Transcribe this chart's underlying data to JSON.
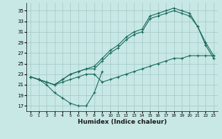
{
  "xlabel": "Humidex (Indice chaleur)",
  "bg_color": "#c8e8e5",
  "grid_color": "#a0c8c5",
  "line_color": "#1a6b5a",
  "xlim": [
    -0.5,
    23.5
  ],
  "ylim": [
    16.0,
    36.5
  ],
  "xticks": [
    0,
    1,
    2,
    3,
    4,
    5,
    6,
    7,
    8,
    9,
    10,
    11,
    12,
    13,
    14,
    15,
    16,
    17,
    18,
    19,
    20,
    21,
    22,
    23
  ],
  "yticks": [
    17,
    19,
    21,
    23,
    25,
    27,
    29,
    31,
    33,
    35
  ],
  "line1_x": [
    0,
    1,
    2,
    3,
    4,
    5,
    6,
    7,
    8,
    9
  ],
  "line1_y": [
    22.5,
    22.0,
    21.0,
    19.5,
    18.5,
    17.5,
    17.0,
    17.0,
    19.5,
    23.5
  ],
  "line2_x": [
    0,
    1,
    2,
    3,
    4,
    5,
    6,
    7,
    8,
    9,
    10,
    11,
    12,
    13,
    14,
    15,
    16,
    17,
    18,
    19,
    20,
    21,
    22,
    23
  ],
  "line2_y": [
    22.5,
    22.0,
    21.5,
    21.0,
    21.5,
    22.0,
    22.5,
    23.0,
    23.0,
    21.5,
    22.0,
    22.5,
    23.0,
    23.5,
    24.0,
    24.5,
    25.0,
    25.5,
    26.0,
    26.0,
    26.5,
    26.5,
    26.5,
    26.5
  ],
  "line3_x": [
    0,
    1,
    2,
    3,
    4,
    5,
    6,
    7,
    8,
    9,
    10,
    11,
    12,
    13,
    14,
    15,
    16,
    17,
    18,
    19,
    20,
    21,
    22,
    23
  ],
  "line3_y": [
    22.5,
    22.0,
    21.5,
    21.0,
    22.0,
    23.0,
    23.5,
    24.0,
    24.5,
    26.0,
    27.5,
    28.5,
    30.0,
    31.0,
    31.5,
    34.0,
    34.5,
    35.0,
    35.5,
    35.0,
    34.5,
    32.0,
    29.0,
    26.5
  ],
  "line4_x": [
    0,
    1,
    2,
    3,
    4,
    5,
    6,
    7,
    8,
    9,
    10,
    11,
    12,
    13,
    14,
    15,
    16,
    17,
    18,
    19,
    20,
    21,
    22,
    23
  ],
  "line4_y": [
    22.5,
    22.0,
    21.5,
    21.0,
    22.0,
    23.0,
    23.5,
    24.0,
    24.0,
    25.5,
    27.0,
    28.0,
    29.5,
    30.5,
    31.0,
    33.5,
    34.0,
    34.5,
    35.0,
    34.5,
    34.0,
    32.0,
    28.5,
    26.0
  ]
}
